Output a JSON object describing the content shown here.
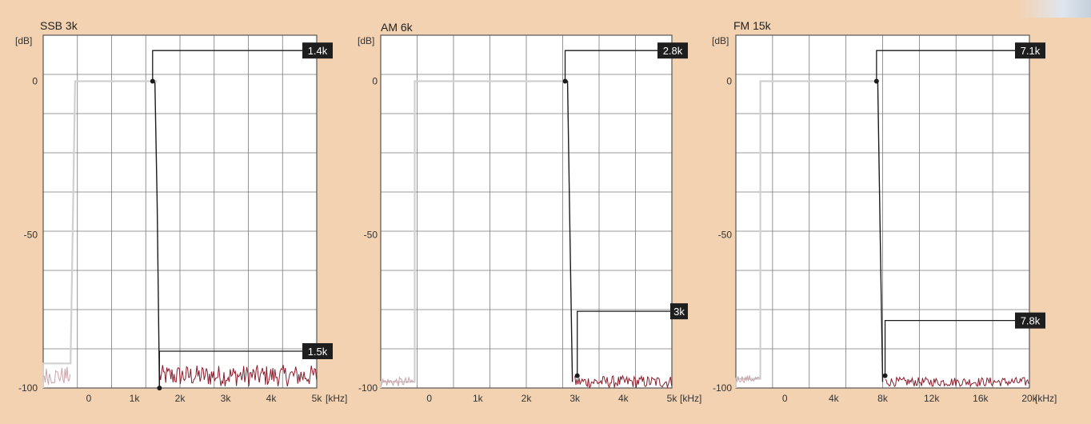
{
  "colors": {
    "background": "#f3d2b2",
    "plot_bg": "#ffffff",
    "grid": "#7a7a7a",
    "response_trace": "#1b1b1b",
    "ghost_trace": "#d0d0d0",
    "noise_trace": "#8a1c2c",
    "noise_ghost": "#c9a4aa",
    "marker_bg": "#1e1e1e",
    "marker_text": "#ffffff"
  },
  "chart_data": [
    {
      "type": "line",
      "title": "SSB 3k",
      "ylabel": "[dB]",
      "xlabel": "[kHz]",
      "ylim": [
        -100,
        0
      ],
      "xlim": [
        -1,
        5
      ],
      "x_ticks": [
        {
          "value": 0,
          "label": "0"
        },
        {
          "value": 1,
          "label": "1k"
        },
        {
          "value": 2,
          "label": "2k"
        },
        {
          "value": 3,
          "label": "3k"
        },
        {
          "value": 4,
          "label": "4k"
        },
        {
          "value": 5,
          "label": "5k"
        }
      ],
      "y_ticks": [
        {
          "value": 0,
          "label": "0"
        },
        {
          "value": -50,
          "label": "-50"
        },
        {
          "value": -100,
          "label": "-100"
        }
      ],
      "series": [
        {
          "role": "response",
          "x": [
            1.15,
            1.3,
            1.45,
            1.5,
            1.55
          ],
          "y": [
            0,
            0,
            0,
            -40,
            -100
          ]
        },
        {
          "role": "ghost",
          "x": [
            -1,
            -1,
            -0.4,
            -0.3,
            1.15,
            1.5
          ],
          "y": [
            -100,
            -92,
            -92,
            0,
            0,
            0
          ]
        },
        {
          "role": "noise",
          "x_range": [
            1.55,
            5
          ],
          "y_mean": -96,
          "y_spread": 3.5
        },
        {
          "role": "noise_ghost",
          "x_range": [
            -1,
            -0.4
          ],
          "y_mean": -96,
          "y_spread": 3
        }
      ],
      "markers": [
        {
          "label": "1.4k",
          "x": 1.4,
          "y": 0,
          "label_y": 10
        },
        {
          "label": "1.5k",
          "x": 1.55,
          "y": -100,
          "label_y": -88
        }
      ]
    },
    {
      "type": "line",
      "title": "AM 6k",
      "ylabel": "[dB]",
      "xlabel": "[kHz]",
      "ylim": [
        -100,
        0
      ],
      "xlim": [
        -1,
        5
      ],
      "x_ticks": [
        {
          "value": 0,
          "label": "0"
        },
        {
          "value": 1,
          "label": "1k"
        },
        {
          "value": 2,
          "label": "2k"
        },
        {
          "value": 3,
          "label": "3k"
        },
        {
          "value": 4,
          "label": "4k"
        },
        {
          "value": 5,
          "label": "5k"
        }
      ],
      "y_ticks": [
        {
          "value": 0,
          "label": "0"
        },
        {
          "value": -50,
          "label": "-50"
        },
        {
          "value": -100,
          "label": "-100"
        }
      ],
      "series": [
        {
          "role": "response",
          "x": [
            2.55,
            2.75,
            2.85,
            2.9,
            2.95
          ],
          "y": [
            0,
            0,
            0,
            -50,
            -98
          ]
        },
        {
          "role": "ghost",
          "x": [
            -1,
            -1,
            -0.3,
            -0.3,
            2.85
          ],
          "y": [
            -100,
            -98,
            -98,
            0,
            0
          ]
        },
        {
          "role": "noise",
          "x_range": [
            3,
            5
          ],
          "y_mean": -98,
          "y_spread": 2
        },
        {
          "role": "noise_ghost",
          "x_range": [
            -1,
            -0.3
          ],
          "y_mean": -98,
          "y_spread": 1.5
        }
      ],
      "markers": [
        {
          "label": "2.8k",
          "x": 2.8,
          "y": 0,
          "label_y": 10
        },
        {
          "label": "3k",
          "x": 3.05,
          "y": -96,
          "label_y": -75
        }
      ]
    },
    {
      "type": "line",
      "title": "FM 15k",
      "ylabel": "[dB]",
      "xlabel": "[kHz]",
      "ylim": [
        -100,
        0
      ],
      "xlim": [
        -4,
        20
      ],
      "x_ticks": [
        {
          "value": 0,
          "label": "0"
        },
        {
          "value": 4,
          "label": "4k"
        },
        {
          "value": 8,
          "label": "8k"
        },
        {
          "value": 12,
          "label": "12k"
        },
        {
          "value": 16,
          "label": "16k"
        },
        {
          "value": 20,
          "label": "20k"
        }
      ],
      "y_ticks": [
        {
          "value": 0,
          "label": "0"
        },
        {
          "value": -50,
          "label": "-50"
        },
        {
          "value": -100,
          "label": "-100"
        }
      ],
      "series": [
        {
          "role": "response",
          "x": [
            7,
            7.4,
            7.6,
            7.8,
            8
          ],
          "y": [
            0,
            0,
            0,
            -50,
            -98
          ]
        },
        {
          "role": "ghost",
          "x": [
            -4,
            -4,
            -2,
            -2,
            7.6
          ],
          "y": [
            -100,
            -97,
            -97,
            0,
            0
          ]
        },
        {
          "role": "noise",
          "x_range": [
            8.2,
            20
          ],
          "y_mean": -98,
          "y_spread": 1.5
        },
        {
          "role": "noise_ghost",
          "x_range": [
            -4,
            -2
          ],
          "y_mean": -97,
          "y_spread": 1.2
        }
      ],
      "markers": [
        {
          "label": "7.1k",
          "x": 7.5,
          "y": 0,
          "label_y": 10
        },
        {
          "label": "7.8k",
          "x": 8.2,
          "y": -96,
          "label_y": -78
        }
      ]
    }
  ]
}
